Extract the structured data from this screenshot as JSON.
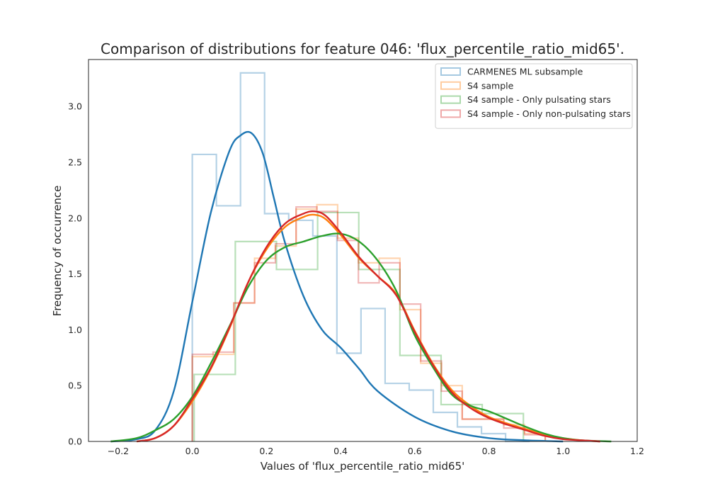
{
  "chart_data": {
    "type": "histogram+kde",
    "title": "Comparison of distributions for feature 046: 'flux_percentile_ratio_mid65'.",
    "xlabel": "Values of 'flux_percentile_ratio_mid65'",
    "ylabel": "Frequency of occurrence",
    "xlim": [
      -0.28,
      1.2
    ],
    "ylim": [
      0.0,
      3.42
    ],
    "xticks": [
      -0.2,
      0.0,
      0.2,
      0.4,
      0.6,
      0.8,
      1.0,
      1.2
    ],
    "xtick_labels": [
      "−0.2",
      "0.0",
      "0.2",
      "0.4",
      "0.6",
      "0.8",
      "1.0",
      "1.2"
    ],
    "yticks": [
      0.0,
      0.5,
      1.0,
      1.5,
      2.0,
      2.5,
      3.0
    ],
    "ytick_labels": [
      "0.0",
      "0.5",
      "1.0",
      "1.5",
      "2.0",
      "2.5",
      "3.0"
    ],
    "grid": false,
    "legend_position": "top-right",
    "series": [
      {
        "name": "CARMENES ML subsample",
        "color": "#1f77b4",
        "hist_edges": [
          0.0,
          0.065,
          0.13,
          0.195,
          0.26,
          0.325,
          0.39,
          0.455,
          0.52,
          0.585,
          0.65,
          0.715,
          0.78,
          0.845,
          0.91
        ],
        "hist_values": [
          2.57,
          2.11,
          3.3,
          2.04,
          1.98,
          1.84,
          0.79,
          1.19,
          0.52,
          0.46,
          0.26,
          0.13,
          0.07,
          0.0
        ],
        "kde_x": [
          -0.22,
          -0.15,
          -0.1,
          -0.05,
          0.0,
          0.05,
          0.1,
          0.13,
          0.16,
          0.19,
          0.22,
          0.25,
          0.3,
          0.35,
          0.4,
          0.45,
          0.5,
          0.6,
          0.7,
          0.8,
          0.9,
          1.0
        ],
        "kde_y": [
          0.0,
          0.02,
          0.1,
          0.45,
          1.25,
          2.05,
          2.6,
          2.74,
          2.76,
          2.58,
          2.18,
          1.78,
          1.3,
          1.0,
          0.84,
          0.65,
          0.45,
          0.22,
          0.09,
          0.03,
          0.01,
          0.0
        ]
      },
      {
        "name": "S4 sample",
        "color": "#ff7f0e",
        "hist_edges": [
          0.0,
          0.056,
          0.112,
          0.168,
          0.224,
          0.28,
          0.336,
          0.392,
          0.448,
          0.504,
          0.56,
          0.616,
          0.672,
          0.728,
          0.784,
          0.84,
          0.896,
          0.952
        ],
        "hist_values": [
          0.76,
          0.78,
          1.24,
          1.64,
          1.75,
          2.08,
          2.12,
          1.82,
          1.6,
          1.64,
          1.18,
          0.7,
          0.5,
          0.2,
          0.2,
          0.15,
          0.07
        ],
        "kde_x": [
          -0.15,
          -0.1,
          -0.05,
          0.0,
          0.05,
          0.1,
          0.15,
          0.2,
          0.25,
          0.3,
          0.33,
          0.36,
          0.4,
          0.45,
          0.5,
          0.55,
          0.6,
          0.65,
          0.7,
          0.75,
          0.8,
          0.85,
          0.9,
          0.95,
          1.0,
          1.05,
          1.1
        ],
        "kde_y": [
          0.0,
          0.03,
          0.14,
          0.36,
          0.65,
          1.01,
          1.42,
          1.72,
          1.92,
          2.01,
          2.03,
          1.99,
          1.85,
          1.64,
          1.48,
          1.32,
          0.99,
          0.69,
          0.46,
          0.32,
          0.22,
          0.16,
          0.11,
          0.06,
          0.03,
          0.01,
          0.0
        ]
      },
      {
        "name": "S4 sample - Only pulsating stars",
        "color": "#2ca02c",
        "hist_edges": [
          0.005,
          0.116,
          0.227,
          0.338,
          0.449,
          0.56,
          0.671,
          0.782,
          0.893
        ],
        "hist_values": [
          0.6,
          1.79,
          1.54,
          2.05,
          1.54,
          0.77,
          0.33,
          0.25
        ],
        "kde_x": [
          -0.22,
          -0.15,
          -0.1,
          -0.05,
          0.0,
          0.05,
          0.1,
          0.15,
          0.2,
          0.25,
          0.3,
          0.35,
          0.4,
          0.45,
          0.5,
          0.55,
          0.6,
          0.65,
          0.7,
          0.75,
          0.8,
          0.85,
          0.9,
          0.95,
          1.0,
          1.05,
          1.13
        ],
        "kde_y": [
          0.0,
          0.03,
          0.1,
          0.2,
          0.4,
          0.7,
          1.03,
          1.38,
          1.62,
          1.74,
          1.79,
          1.84,
          1.86,
          1.79,
          1.62,
          1.35,
          0.95,
          0.66,
          0.42,
          0.32,
          0.27,
          0.2,
          0.13,
          0.07,
          0.03,
          0.01,
          0.0
        ]
      },
      {
        "name": "S4 sample - Only non-pulsating stars",
        "color": "#d62728",
        "hist_edges": [
          0.0,
          0.056,
          0.112,
          0.168,
          0.224,
          0.28,
          0.336,
          0.392,
          0.448,
          0.504,
          0.56,
          0.616,
          0.672,
          0.728,
          0.784,
          0.84,
          0.896,
          0.952
        ],
        "hist_values": [
          0.78,
          0.8,
          1.24,
          1.6,
          1.77,
          2.1,
          2.06,
          1.8,
          1.42,
          1.6,
          1.23,
          0.72,
          0.45,
          0.2,
          0.2,
          0.12,
          0.06
        ],
        "kde_x": [
          -0.15,
          -0.1,
          -0.05,
          0.0,
          0.05,
          0.1,
          0.15,
          0.2,
          0.25,
          0.3,
          0.33,
          0.36,
          0.4,
          0.45,
          0.5,
          0.55,
          0.6,
          0.65,
          0.7,
          0.75,
          0.8,
          0.85,
          0.9,
          0.95,
          1.0,
          1.05,
          1.1
        ],
        "kde_y": [
          0.0,
          0.03,
          0.14,
          0.38,
          0.66,
          1.02,
          1.42,
          1.74,
          1.95,
          2.04,
          2.06,
          2.02,
          1.87,
          1.65,
          1.48,
          1.31,
          0.98,
          0.68,
          0.44,
          0.3,
          0.21,
          0.15,
          0.1,
          0.05,
          0.02,
          0.01,
          0.0
        ]
      }
    ]
  }
}
